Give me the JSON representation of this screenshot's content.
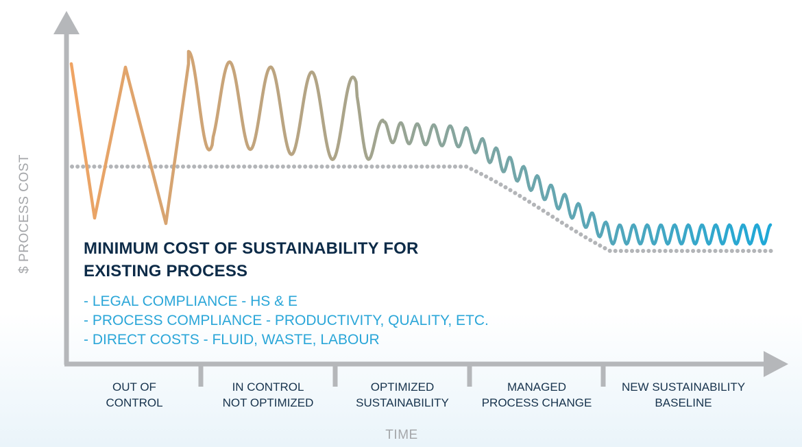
{
  "diagram": {
    "y_axis_label": "PROCESS COST",
    "y_axis_symbol": "$",
    "x_axis_label": "TIME",
    "title_line1": "MINIMUM COST OF SUSTAINABILITY FOR",
    "title_line2": "EXISTING PROCESS",
    "bullets": [
      "- LEGAL COMPLIANCE - HS & E",
      "- PROCESS COMPLIANCE - PRODUCTIVITY, QUALITY, ETC.",
      "- DIRECT COSTS - FLUID, WASTE, LABOUR"
    ],
    "phases": [
      {
        "line1": "OUT OF",
        "line2": "CONTROL"
      },
      {
        "line1": "IN CONTROL",
        "line2": "NOT OPTIMIZED"
      },
      {
        "line1": "OPTIMIZED",
        "line2": "SUSTAINABILITY"
      },
      {
        "line1": "MANAGED",
        "line2": "PROCESS CHANGE"
      },
      {
        "line1": "NEW SUSTAINABILITY",
        "line2": "BASELINE"
      }
    ],
    "colors": {
      "axis": "#b5b7ba",
      "title": "#0d2b48",
      "bullet": "#2aa6d8",
      "wave_start": "#f0a463",
      "wave_mid": "#a9a48a",
      "wave_end": "#1ea8d8",
      "dotted": "#b3b5b8"
    }
  }
}
